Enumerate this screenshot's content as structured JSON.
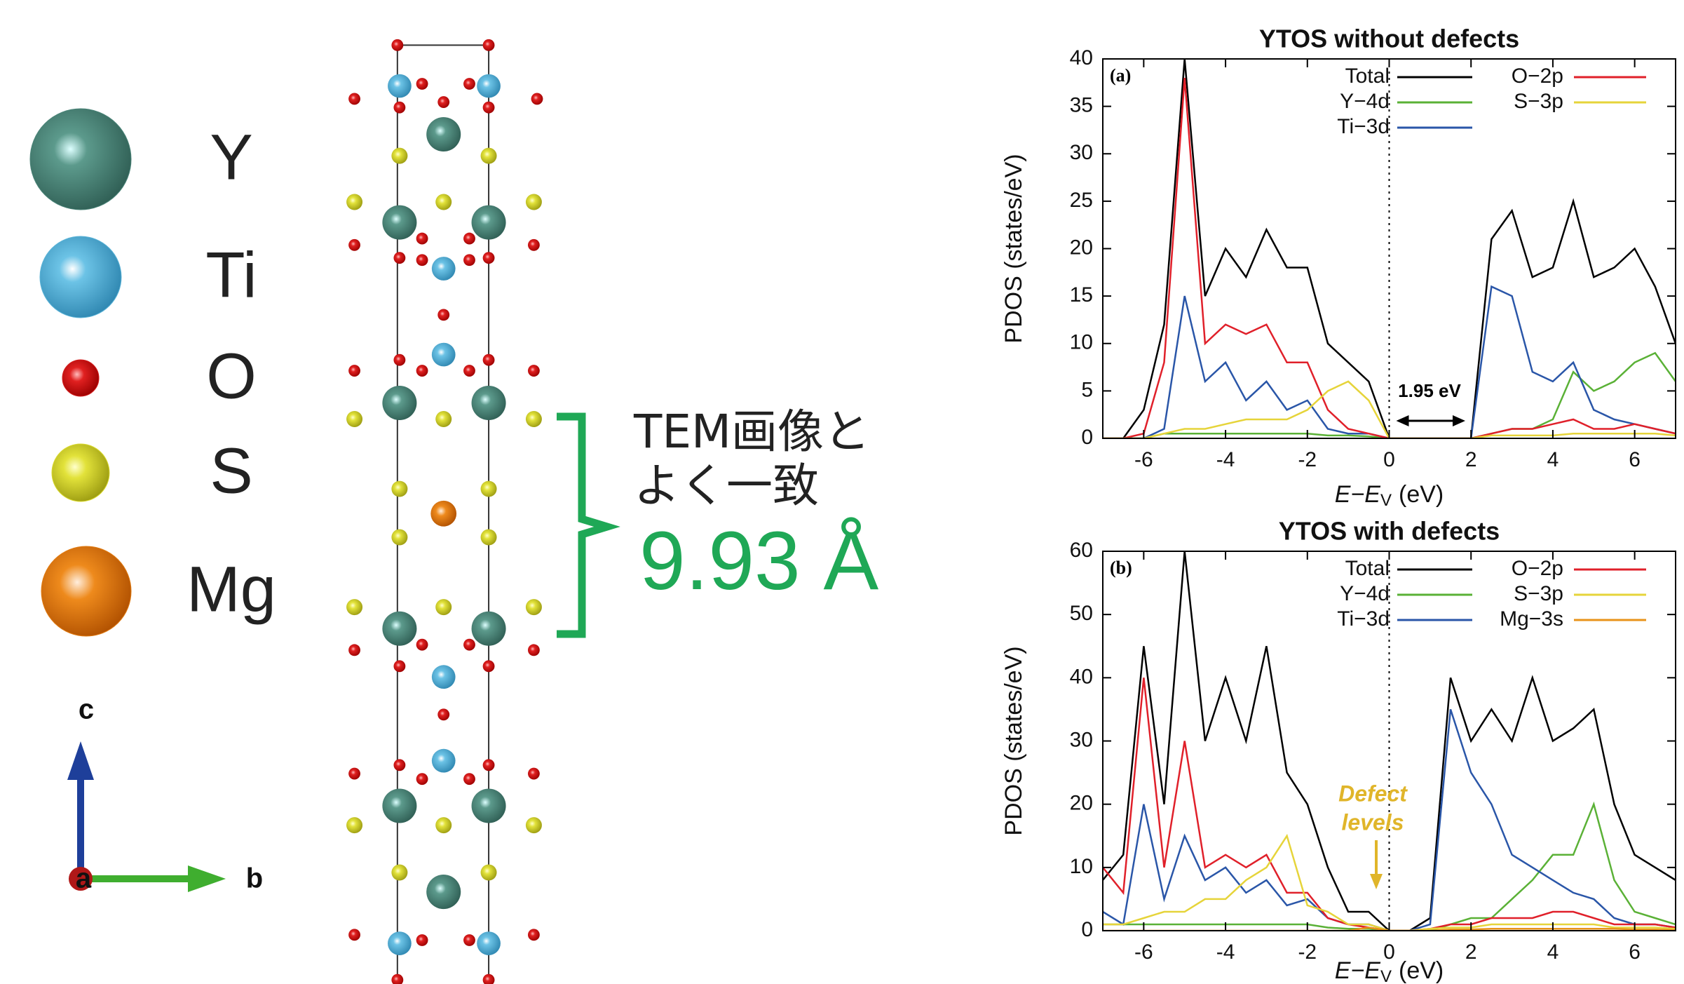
{
  "legend": {
    "items": [
      {
        "label": "Y",
        "color": "#4a8478"
      },
      {
        "label": "Ti",
        "color": "#5bb4d8"
      },
      {
        "label": "O",
        "color": "#d41c1c"
      },
      {
        "label": "S",
        "color": "#d9d92c"
      },
      {
        "label": "Mg",
        "color": "#e07a10"
      }
    ]
  },
  "axes": {
    "c": "c",
    "b": "b",
    "a": "a"
  },
  "annotation": {
    "lines": [
      "TEM画像と",
      "よく一致"
    ],
    "distance": "9.93 Å"
  },
  "chart_data": [
    {
      "type": "line",
      "title": "YTOS without defects",
      "panel": "(a)",
      "xlabel": [
        "E−E",
        "V",
        "(eV)"
      ],
      "ylabel": "PDOS (states/eV)",
      "x": [
        -7,
        -6.5,
        -6,
        -5.5,
        -5,
        -4.5,
        -4,
        -3.5,
        -3,
        -2.5,
        -2,
        -1.5,
        -1,
        -0.5,
        0,
        0.5,
        1,
        1.5,
        2,
        2.5,
        3,
        3.5,
        4,
        4.5,
        5,
        5.5,
        6,
        6.5,
        7
      ],
      "series": [
        {
          "name": "Total",
          "color": "#000000",
          "values": [
            0,
            0,
            3,
            12,
            40,
            15,
            20,
            17,
            22,
            18,
            18,
            10,
            8,
            6,
            0,
            0,
            0,
            0,
            0,
            21,
            24,
            17,
            18,
            25,
            17,
            18,
            20,
            16,
            10
          ]
        },
        {
          "name": "Y−4d",
          "color": "#5ab136",
          "values": [
            0,
            0,
            0,
            0.5,
            0.5,
            0.5,
            0.5,
            0.5,
            0.5,
            0.5,
            0.5,
            0.3,
            0.3,
            0.2,
            0,
            0,
            0,
            0,
            0,
            0.5,
            1,
            1,
            2,
            7,
            5,
            6,
            8,
            9,
            6
          ]
        },
        {
          "name": "Ti−3d",
          "color": "#2a56a8",
          "values": [
            0,
            0,
            0,
            1,
            15,
            6,
            8,
            4,
            6,
            3,
            4,
            1,
            0.5,
            0.5,
            0,
            0,
            0,
            0,
            0,
            16,
            15,
            7,
            6,
            8,
            3,
            2,
            1.5,
            1,
            0.5
          ]
        },
        {
          "name": "O−2p",
          "color": "#e0202a",
          "values": [
            0,
            0,
            0.5,
            8,
            38,
            10,
            12,
            11,
            12,
            8,
            8,
            3,
            1,
            0.5,
            0,
            0,
            0,
            0,
            0,
            0.5,
            1,
            1,
            1.5,
            2,
            1,
            1,
            1.5,
            1,
            0.5
          ]
        },
        {
          "name": "S−3p",
          "color": "#e6d43a",
          "values": [
            0,
            0,
            0,
            0.5,
            1,
            1,
            1.5,
            2,
            2,
            2,
            3,
            5,
            6,
            4,
            0,
            0,
            0,
            0,
            0,
            0.3,
            0.3,
            0.3,
            0.3,
            0.5,
            0.5,
            0.5,
            0.5,
            0.5,
            0.3
          ]
        }
      ],
      "xlim": [
        -7,
        7
      ],
      "xticks": [
        -6,
        -4,
        -2,
        0,
        2,
        4,
        6
      ],
      "ylim": [
        0,
        40
      ],
      "yticks": [
        0,
        5,
        10,
        15,
        20,
        25,
        30,
        35,
        40
      ],
      "gap_label": "1.95 eV"
    },
    {
      "type": "line",
      "title": "YTOS with defects",
      "panel": "(b)",
      "xlabel": [
        "E−E",
        "V",
        "(eV)"
      ],
      "ylabel": "PDOS (states/eV)",
      "x": [
        -7,
        -6.5,
        -6,
        -5.5,
        -5,
        -4.5,
        -4,
        -3.5,
        -3,
        -2.5,
        -2,
        -1.5,
        -1,
        -0.5,
        0,
        0.5,
        1,
        1.5,
        2,
        2.5,
        3,
        3.5,
        4,
        4.5,
        5,
        5.5,
        6,
        6.5,
        7
      ],
      "series": [
        {
          "name": "Total",
          "color": "#000000",
          "values": [
            8,
            12,
            45,
            20,
            60,
            30,
            40,
            30,
            45,
            25,
            20,
            10,
            3,
            3,
            0,
            0,
            2,
            40,
            30,
            35,
            30,
            40,
            30,
            32,
            35,
            20,
            12,
            10,
            8
          ]
        },
        {
          "name": "Y−4d",
          "color": "#5ab136",
          "values": [
            1,
            1,
            1,
            1,
            1,
            1,
            1,
            1,
            1,
            1,
            1,
            0.5,
            0.3,
            0.3,
            0,
            0,
            0,
            1,
            2,
            2,
            5,
            8,
            12,
            12,
            20,
            8,
            3,
            2,
            1
          ]
        },
        {
          "name": "Ti−3d",
          "color": "#2a56a8",
          "values": [
            3,
            1,
            20,
            5,
            15,
            8,
            10,
            6,
            8,
            4,
            5,
            2,
            1,
            1,
            0,
            0,
            1,
            35,
            25,
            20,
            12,
            10,
            8,
            6,
            5,
            2,
            1,
            1,
            0.5
          ]
        },
        {
          "name": "O−2p",
          "color": "#e0202a",
          "values": [
            10,
            6,
            40,
            10,
            30,
            10,
            12,
            10,
            12,
            6,
            6,
            2,
            1,
            0.5,
            0,
            0,
            0.3,
            1,
            1,
            2,
            2,
            2,
            3,
            3,
            2,
            1,
            1,
            1,
            0.5
          ]
        },
        {
          "name": "S−3p",
          "color": "#e6d43a",
          "values": [
            1,
            1,
            2,
            3,
            3,
            5,
            5,
            8,
            10,
            15,
            4,
            3,
            1,
            1,
            0,
            0,
            0.3,
            0.5,
            0.5,
            1,
            1,
            1,
            1,
            1,
            1,
            0.5,
            0.5,
            0.5,
            0.3
          ]
        },
        {
          "name": "Mg−3s",
          "color": "#e8931a",
          "values": [
            0,
            0,
            0,
            0,
            0,
            0,
            0,
            0,
            0,
            0,
            0,
            0,
            0,
            0.5,
            0,
            0,
            0,
            0.2,
            0.2,
            0.3,
            0.3,
            0.3,
            0.3,
            0.3,
            0.3,
            0.3,
            0.2,
            0.2,
            0.1
          ]
        }
      ],
      "xlim": [
        -7,
        7
      ],
      "xticks": [
        -6,
        -4,
        -2,
        0,
        2,
        4,
        6
      ],
      "ylim": [
        0,
        60
      ],
      "yticks": [
        0,
        10,
        20,
        30,
        40,
        50,
        60
      ],
      "defect_label": [
        "Defect",
        "levels"
      ]
    }
  ]
}
